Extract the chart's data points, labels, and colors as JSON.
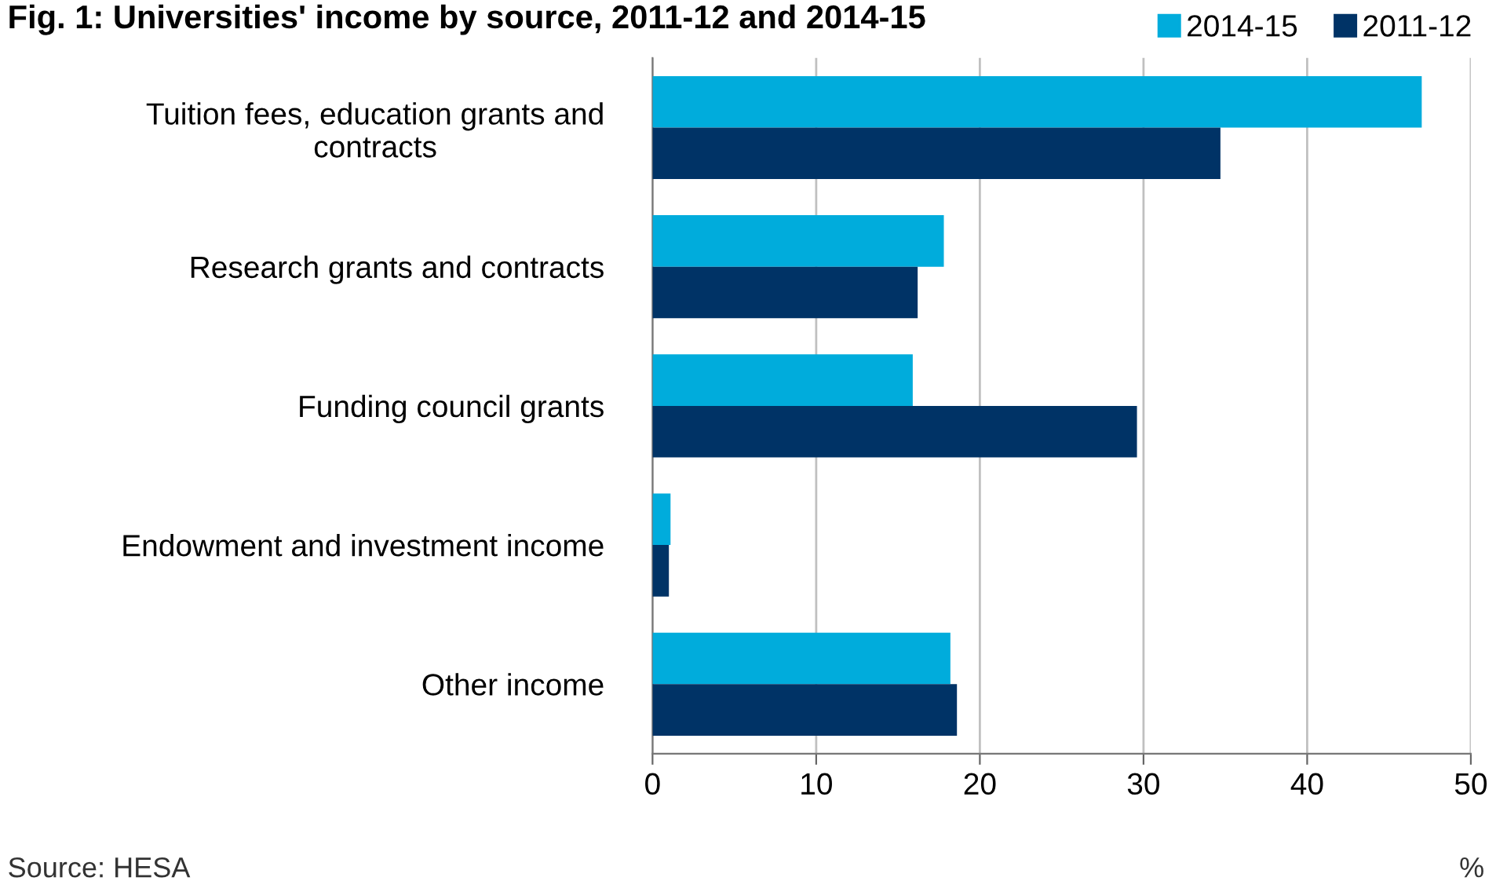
{
  "chart_data": {
    "type": "bar",
    "orientation": "horizontal",
    "title": "Fig. 1: Universities' income by source, 2011-12 and 2014-15",
    "xlabel": "%",
    "categories": [
      "Tuition fees, education grants and\ncontracts",
      "Research grants and contracts",
      "Funding council grants",
      "Endowment and investment income",
      "Other income"
    ],
    "series": [
      {
        "name": "2014-15",
        "color": "#00acdc",
        "values": [
          47.0,
          17.8,
          15.9,
          1.1,
          18.2
        ]
      },
      {
        "name": "2011-12",
        "color": "#003366",
        "values": [
          34.7,
          16.2,
          29.6,
          1.0,
          18.6
        ]
      }
    ],
    "xlim": [
      0,
      50
    ],
    "xticks": [
      0,
      10,
      20,
      30,
      40,
      50
    ],
    "grid": "x",
    "legend": "top right",
    "annotations": [
      "Source: HESA"
    ]
  }
}
